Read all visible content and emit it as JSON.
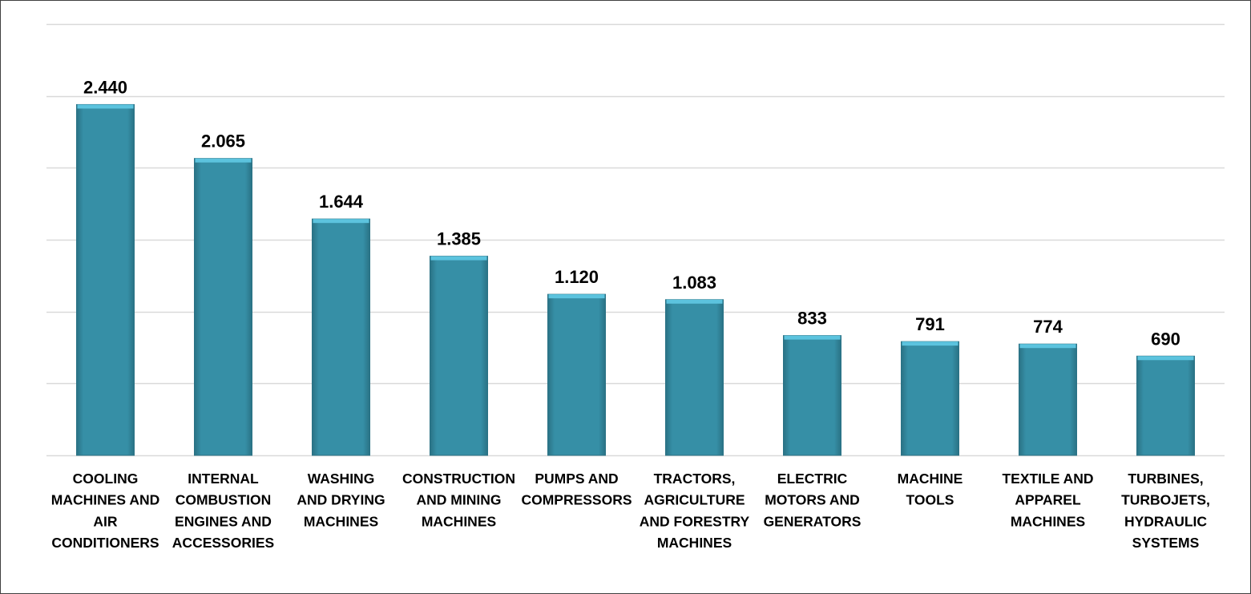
{
  "chart_data": {
    "type": "bar",
    "categories": [
      [
        "COOLING",
        "MACHINES AND",
        "AIR",
        "CONDITIONERS"
      ],
      [
        "INTERNAL",
        "COMBUSTION",
        "ENGINES AND",
        "ACCESSORIES"
      ],
      [
        "WASHING",
        "AND DRYING",
        "MACHINES"
      ],
      [
        "CONSTRUCTION",
        "AND MINING",
        "MACHINES"
      ],
      [
        "PUMPS AND",
        "COMPRESSORS"
      ],
      [
        "TRACTORS,",
        "AGRICULTURE",
        "AND FORESTRY",
        "MACHINES"
      ],
      [
        "ELECTRIC",
        "MOTORS AND",
        "GENERATORS"
      ],
      [
        "MACHINE",
        "TOOLS"
      ],
      [
        "TEXTILE AND",
        "APPAREL",
        "MACHINES"
      ],
      [
        "TURBINES,",
        "TURBOJETS,",
        "HYDRAULIC",
        "SYSTEMS"
      ]
    ],
    "values": [
      2440,
      2065,
      1644,
      1385,
      1120,
      1083,
      833,
      791,
      774,
      690
    ],
    "data_labels": [
      "2.440",
      "2.065",
      "1.644",
      "1.385",
      "1.120",
      "1.083",
      "833",
      "791",
      "774",
      "690"
    ],
    "ylim": [
      0,
      3000
    ],
    "gridline_step": 500,
    "grid": true,
    "colors": {
      "bar_fill": "#368FA6",
      "bar_top": "#5CC3DE",
      "bar_edge": "#2A7285",
      "gridline": "#D9D9D9",
      "border": "#404040"
    }
  }
}
